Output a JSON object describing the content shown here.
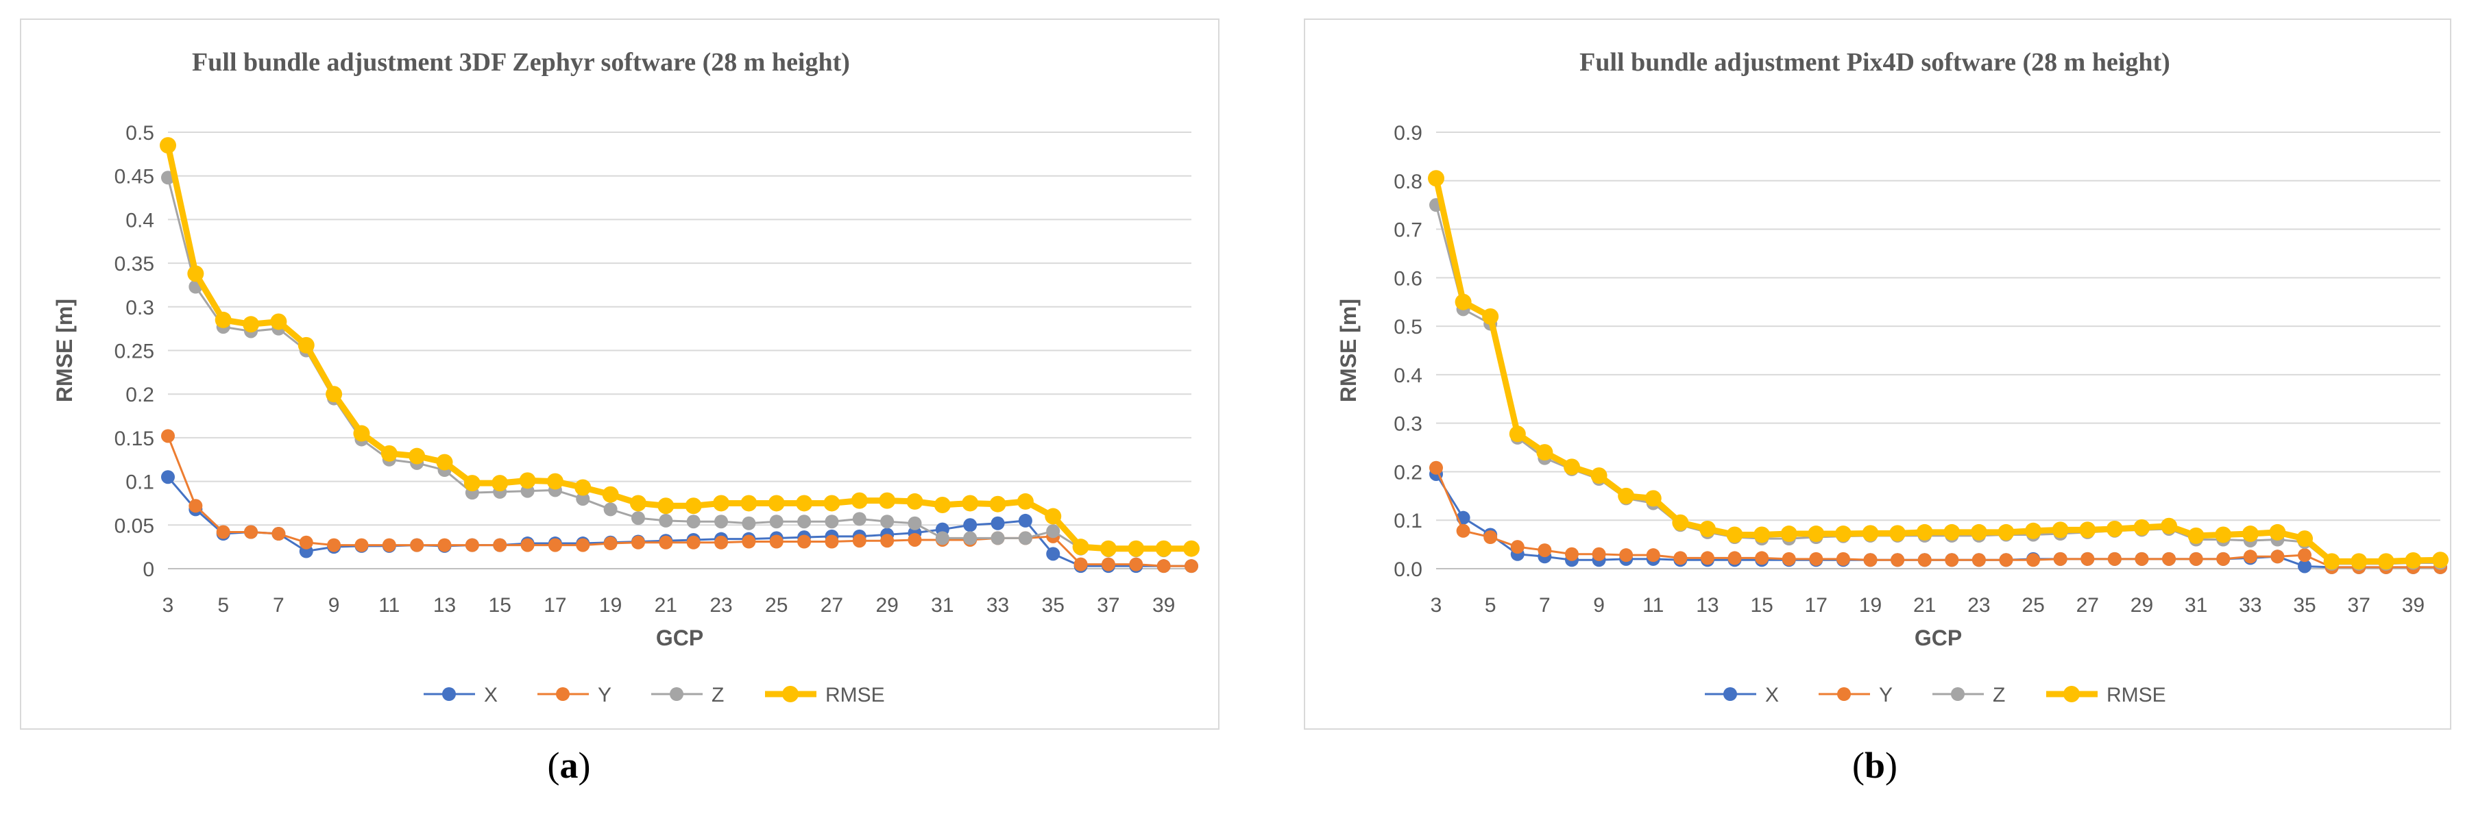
{
  "chart_data": [
    {
      "type": "line",
      "panel_label": "(a)",
      "panel_letter": "a",
      "title": "Full bundle adjustment 3DF Zephyr software (28 m height)",
      "xlabel": "GCP",
      "ylabel": "RMSE [m]",
      "xlim": [
        3,
        40
      ],
      "ylim": [
        0,
        0.5
      ],
      "yticks": [
        0,
        0.05,
        0.1,
        0.15,
        0.2,
        0.25,
        0.3,
        0.35,
        0.4,
        0.45,
        0.5
      ],
      "ytick_labels": [
        "0",
        "0.05",
        "0.1",
        "0.15",
        "0.2",
        "0.25",
        "0.3",
        "0.35",
        "0.4",
        "0.45",
        "0.5"
      ],
      "xtick_labels": [
        "3",
        "5",
        "7",
        "9",
        "11",
        "13",
        "15",
        "17",
        "19",
        "21",
        "23",
        "25",
        "27",
        "29",
        "31",
        "33",
        "35",
        "37",
        "39"
      ],
      "x": [
        3,
        4,
        5,
        6,
        7,
        8,
        9,
        10,
        11,
        12,
        13,
        14,
        15,
        16,
        17,
        18,
        19,
        20,
        21,
        22,
        23,
        24,
        25,
        26,
        27,
        28,
        29,
        30,
        31,
        32,
        33,
        34,
        35,
        36,
        37,
        38,
        39,
        40
      ],
      "grid": true,
      "legend_position": "bottom",
      "series": [
        {
          "name": "X",
          "color": "#4472c4",
          "values": [
            0.105,
            0.068,
            0.04,
            0.042,
            0.04,
            0.02,
            0.025,
            0.026,
            0.026,
            0.027,
            0.026,
            0.027,
            0.027,
            0.029,
            0.029,
            0.029,
            0.03,
            0.031,
            0.032,
            0.033,
            0.034,
            0.034,
            0.035,
            0.036,
            0.037,
            0.037,
            0.039,
            0.041,
            0.045,
            0.05,
            0.052,
            0.055,
            0.017,
            0.003,
            0.003,
            0.003,
            0.003,
            0.003
          ]
        },
        {
          "name": "Y",
          "color": "#ed7d31",
          "values": [
            0.152,
            0.072,
            0.042,
            0.042,
            0.04,
            0.03,
            0.027,
            0.027,
            0.027,
            0.027,
            0.027,
            0.027,
            0.027,
            0.027,
            0.027,
            0.027,
            0.029,
            0.03,
            0.03,
            0.03,
            0.03,
            0.031,
            0.031,
            0.031,
            0.031,
            0.032,
            0.032,
            0.033,
            0.033,
            0.033,
            0.035,
            0.035,
            0.037,
            0.005,
            0.005,
            0.005,
            0.003,
            0.003
          ]
        },
        {
          "name": "Z",
          "color": "#a5a5a5",
          "values": [
            0.448,
            0.323,
            0.277,
            0.272,
            0.275,
            0.25,
            0.195,
            0.148,
            0.125,
            0.121,
            0.113,
            0.087,
            0.088,
            0.089,
            0.09,
            0.08,
            0.068,
            0.058,
            0.055,
            0.054,
            0.054,
            0.052,
            0.054,
            0.054,
            0.054,
            0.057,
            0.054,
            0.052,
            0.035,
            0.035,
            0.035,
            0.035,
            0.043,
            0.023,
            0.021,
            0.021,
            0.021,
            0.022
          ]
        },
        {
          "name": "RMSE",
          "color": "#ffc000",
          "values": [
            0.485,
            0.338,
            0.285,
            0.28,
            0.283,
            0.256,
            0.2,
            0.155,
            0.132,
            0.129,
            0.122,
            0.098,
            0.098,
            0.101,
            0.1,
            0.093,
            0.085,
            0.075,
            0.072,
            0.072,
            0.075,
            0.075,
            0.075,
            0.075,
            0.075,
            0.078,
            0.078,
            0.077,
            0.073,
            0.075,
            0.074,
            0.077,
            0.06,
            0.025,
            0.023,
            0.023,
            0.023,
            0.023
          ]
        }
      ]
    },
    {
      "type": "line",
      "panel_label": "(b)",
      "panel_letter": "b",
      "title": "Full bundle adjustment Pix4D software (28 m height)",
      "xlabel": "GCP",
      "ylabel": "RMSE [m]",
      "xlim": [
        3,
        40
      ],
      "ylim": [
        0,
        0.9
      ],
      "yticks": [
        0,
        0.1,
        0.2,
        0.3,
        0.4,
        0.5,
        0.6,
        0.7,
        0.8,
        0.9
      ],
      "ytick_labels": [
        "0.0",
        "0.1",
        "0.2",
        "0.3",
        "0.4",
        "0.5",
        "0.6",
        "0.7",
        "0.8",
        "0.9"
      ],
      "xtick_labels": [
        "3",
        "5",
        "7",
        "9",
        "11",
        "13",
        "15",
        "17",
        "19",
        "21",
        "23",
        "25",
        "27",
        "29",
        "31",
        "33",
        "35",
        "37",
        "39"
      ],
      "x": [
        3,
        4,
        5,
        6,
        7,
        8,
        9,
        10,
        11,
        12,
        13,
        14,
        15,
        16,
        17,
        18,
        19,
        20,
        21,
        22,
        23,
        24,
        25,
        26,
        27,
        28,
        29,
        30,
        31,
        32,
        33,
        34,
        35,
        36,
        37,
        38,
        39,
        40
      ],
      "grid": true,
      "legend_position": "bottom",
      "series": [
        {
          "name": "X",
          "color": "#4472c4",
          "values": [
            0.195,
            0.105,
            0.07,
            0.03,
            0.025,
            0.018,
            0.018,
            0.02,
            0.02,
            0.018,
            0.018,
            0.018,
            0.018,
            0.018,
            0.018,
            0.018,
            0.018,
            0.018,
            0.018,
            0.018,
            0.018,
            0.018,
            0.02,
            0.02,
            0.02,
            0.02,
            0.02,
            0.02,
            0.02,
            0.02,
            0.022,
            0.025,
            0.005,
            0.003,
            0.003,
            0.003,
            0.003,
            0.003
          ]
        },
        {
          "name": "Y",
          "color": "#ed7d31",
          "values": [
            0.208,
            0.078,
            0.065,
            0.045,
            0.038,
            0.03,
            0.03,
            0.028,
            0.028,
            0.022,
            0.022,
            0.022,
            0.022,
            0.02,
            0.02,
            0.02,
            0.018,
            0.018,
            0.018,
            0.018,
            0.018,
            0.018,
            0.018,
            0.02,
            0.02,
            0.02,
            0.02,
            0.02,
            0.02,
            0.02,
            0.025,
            0.025,
            0.028,
            0.003,
            0.003,
            0.003,
            0.003,
            0.003
          ]
        },
        {
          "name": "Z",
          "color": "#a5a5a5",
          "values": [
            0.75,
            0.535,
            0.505,
            0.27,
            0.228,
            0.205,
            0.185,
            0.145,
            0.135,
            0.09,
            0.075,
            0.065,
            0.062,
            0.062,
            0.065,
            0.067,
            0.068,
            0.068,
            0.068,
            0.068,
            0.068,
            0.07,
            0.07,
            0.072,
            0.075,
            0.078,
            0.08,
            0.082,
            0.06,
            0.06,
            0.058,
            0.06,
            0.055,
            0.01,
            0.01,
            0.01,
            0.012,
            0.012
          ]
        },
        {
          "name": "RMSE",
          "color": "#ffc000",
          "values": [
            0.805,
            0.55,
            0.52,
            0.278,
            0.24,
            0.21,
            0.192,
            0.15,
            0.145,
            0.095,
            0.082,
            0.07,
            0.07,
            0.072,
            0.072,
            0.072,
            0.073,
            0.073,
            0.075,
            0.075,
            0.075,
            0.075,
            0.078,
            0.08,
            0.08,
            0.082,
            0.085,
            0.088,
            0.068,
            0.07,
            0.072,
            0.075,
            0.062,
            0.015,
            0.015,
            0.015,
            0.017,
            0.018
          ]
        }
      ]
    }
  ]
}
